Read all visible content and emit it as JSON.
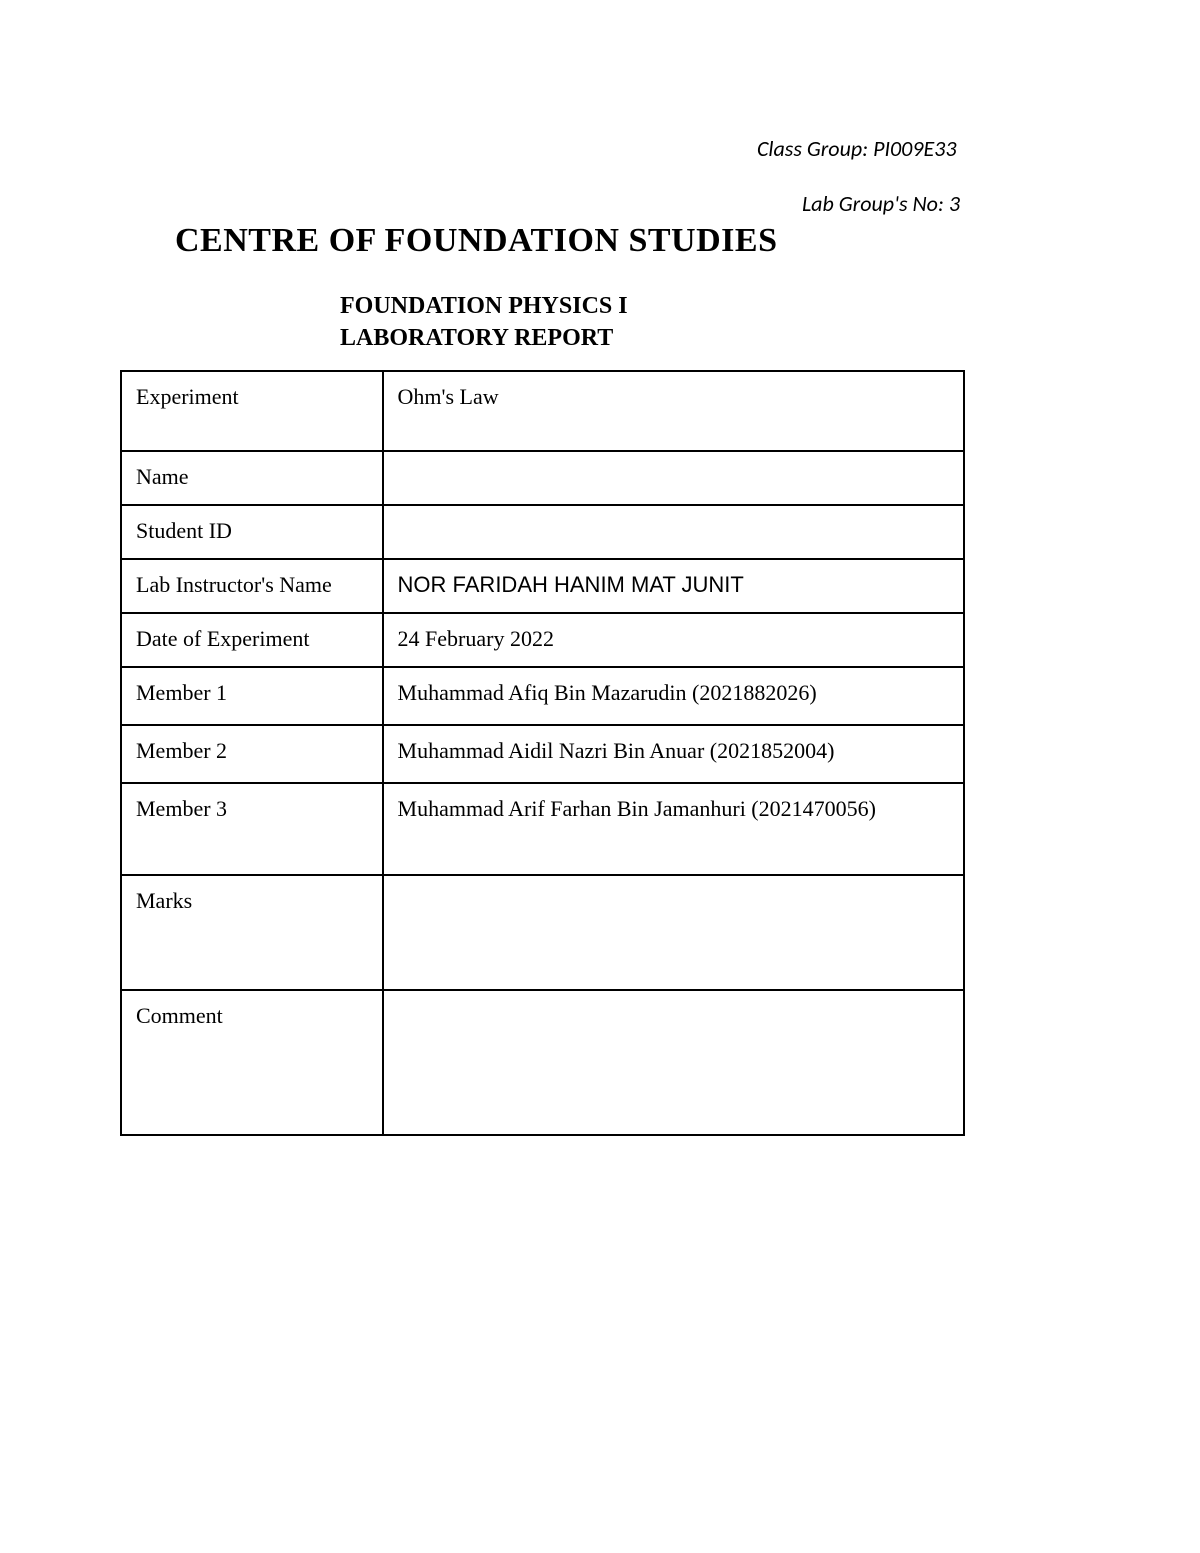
{
  "header": {
    "class_group": "Class Group: PI009E33",
    "lab_group": "Lab Group's No: 3"
  },
  "titles": {
    "main": "CENTRE OF FOUNDATION STUDIES",
    "sub1": "FOUNDATION PHYSICS I",
    "sub2": "LABORATORY REPORT"
  },
  "table": {
    "rows": [
      {
        "label": "Experiment",
        "value": "Ohm's Law"
      },
      {
        "label": "Name",
        "value": ""
      },
      {
        "label": "Student ID",
        "value": ""
      },
      {
        "label": "Lab Instructor's Name",
        "value": "NOR FARIDAH HANIM MAT JUNIT"
      },
      {
        "label": "Date of Experiment",
        "value": "24 February 2022"
      },
      {
        "label": "Member 1",
        "value": "Muhammad Afiq Bin Mazarudin (2021882026)"
      },
      {
        "label": "Member 2",
        "value": "Muhammad Aidil Nazri Bin Anuar (2021852004)"
      },
      {
        "label": "Member 3",
        "value": "Muhammad Arif Farhan Bin Jamanhuri (2021470056)"
      },
      {
        "label": "Marks",
        "value": ""
      },
      {
        "label": "Comment",
        "value": ""
      }
    ]
  }
}
